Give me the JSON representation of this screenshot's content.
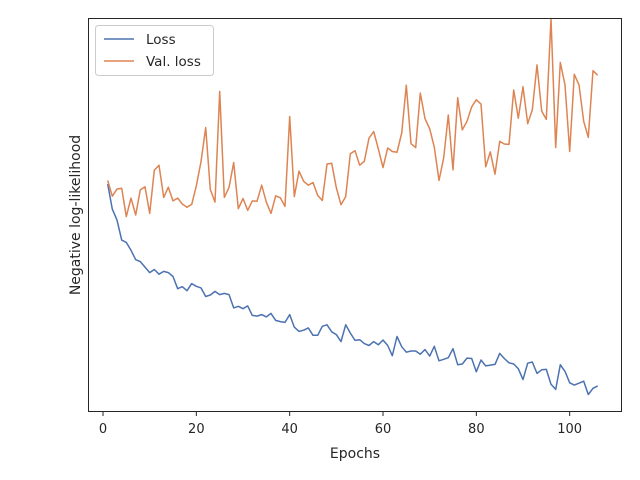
{
  "chart_data": {
    "type": "line",
    "xlabel": "Epochs",
    "ylabel": "Negative log-likelihood",
    "xlim": [
      -3,
      111
    ],
    "ylim": [
      0,
      1
    ],
    "xticks": [
      0,
      20,
      40,
      60,
      80,
      100
    ],
    "xtick_labels": [
      "0",
      "20",
      "40",
      "60",
      "80",
      "100"
    ],
    "y_tick_labels_shown": false,
    "grid": false,
    "legend": "top-left",
    "series": [
      {
        "name": "Loss",
        "color": "#4c72b0",
        "x": [
          1,
          2,
          3,
          4,
          5,
          6,
          7,
          8,
          9,
          10,
          11,
          12,
          13,
          14,
          15,
          16,
          17,
          18,
          19,
          20,
          21,
          22,
          23,
          24,
          25,
          26,
          27,
          28,
          29,
          30,
          31,
          32,
          33,
          34,
          35,
          36,
          37,
          38,
          39,
          40,
          41,
          42,
          43,
          44,
          45,
          46,
          47,
          48,
          49,
          50,
          51,
          52,
          53,
          54,
          55,
          56,
          57,
          58,
          59,
          60,
          61,
          62,
          63,
          64,
          65,
          66,
          67,
          68,
          69,
          70,
          71,
          72,
          73,
          74,
          75,
          76,
          77,
          78,
          79,
          80,
          81,
          82,
          83,
          84,
          85,
          86,
          87,
          88,
          89,
          90,
          91,
          92,
          93,
          94,
          95,
          96,
          97,
          98,
          99,
          100,
          101,
          102,
          103,
          104,
          105,
          106
        ],
        "values": [
          0.579,
          0.515,
          0.487,
          0.436,
          0.43,
          0.41,
          0.386,
          0.381,
          0.367,
          0.353,
          0.361,
          0.349,
          0.356,
          0.353,
          0.343,
          0.312,
          0.317,
          0.307,
          0.325,
          0.318,
          0.314,
          0.292,
          0.296,
          0.305,
          0.297,
          0.3,
          0.297,
          0.263,
          0.267,
          0.261,
          0.268,
          0.244,
          0.242,
          0.246,
          0.24,
          0.249,
          0.231,
          0.228,
          0.226,
          0.246,
          0.214,
          0.203,
          0.206,
          0.212,
          0.193,
          0.193,
          0.216,
          0.22,
          0.202,
          0.195,
          0.177,
          0.22,
          0.199,
          0.18,
          0.182,
          0.172,
          0.167,
          0.177,
          0.169,
          0.181,
          0.167,
          0.141,
          0.19,
          0.164,
          0.15,
          0.153,
          0.153,
          0.145,
          0.157,
          0.14,
          0.165,
          0.128,
          0.132,
          0.136,
          0.159,
          0.118,
          0.12,
          0.135,
          0.134,
          0.1,
          0.13,
          0.115,
          0.117,
          0.119,
          0.147,
          0.134,
          0.123,
          0.12,
          0.108,
          0.08,
          0.122,
          0.125,
          0.096,
          0.105,
          0.106,
          0.068,
          0.055,
          0.118,
          0.101,
          0.072,
          0.066,
          0.071,
          0.076,
          0.042,
          0.058,
          0.064
        ]
      },
      {
        "name": "Val. loss",
        "color": "#dd8452",
        "x": [
          1,
          2,
          3,
          4,
          5,
          6,
          7,
          8,
          9,
          10,
          11,
          12,
          13,
          14,
          15,
          16,
          17,
          18,
          19,
          20,
          21,
          22,
          23,
          24,
          25,
          26,
          27,
          28,
          29,
          30,
          31,
          32,
          33,
          34,
          35,
          36,
          37,
          38,
          39,
          40,
          41,
          42,
          43,
          44,
          45,
          46,
          47,
          48,
          49,
          50,
          51,
          52,
          53,
          54,
          55,
          56,
          57,
          58,
          59,
          60,
          61,
          62,
          63,
          64,
          65,
          66,
          67,
          68,
          69,
          70,
          71,
          72,
          73,
          74,
          75,
          76,
          77,
          78,
          79,
          80,
          81,
          82,
          83,
          84,
          85,
          86,
          87,
          88,
          89,
          90,
          91,
          92,
          93,
          94,
          95,
          96,
          97,
          98,
          99,
          100,
          101,
          102,
          103,
          104,
          105,
          106
        ],
        "values": [
          0.588,
          0.548,
          0.566,
          0.568,
          0.496,
          0.543,
          0.5,
          0.564,
          0.572,
          0.504,
          0.614,
          0.627,
          0.545,
          0.571,
          0.536,
          0.543,
          0.528,
          0.52,
          0.527,
          0.574,
          0.636,
          0.723,
          0.565,
          0.533,
          0.815,
          0.545,
          0.57,
          0.634,
          0.516,
          0.542,
          0.512,
          0.536,
          0.535,
          0.576,
          0.533,
          0.504,
          0.549,
          0.544,
          0.522,
          0.751,
          0.547,
          0.612,
          0.586,
          0.576,
          0.583,
          0.55,
          0.537,
          0.63,
          0.632,
          0.57,
          0.526,
          0.547,
          0.656,
          0.664,
          0.627,
          0.637,
          0.696,
          0.713,
          0.669,
          0.621,
          0.671,
          0.662,
          0.66,
          0.709,
          0.831,
          0.682,
          0.672,
          0.811,
          0.746,
          0.72,
          0.673,
          0.588,
          0.646,
          0.755,
          0.615,
          0.799,
          0.717,
          0.739,
          0.776,
          0.794,
          0.783,
          0.623,
          0.661,
          0.604,
          0.688,
          0.681,
          0.68,
          0.819,
          0.747,
          0.827,
          0.733,
          0.768,
          0.883,
          0.765,
          0.744,
          1.001,
          0.672,
          0.889,
          0.832,
          0.662,
          0.859,
          0.832,
          0.739,
          0.698,
          0.868,
          0.856
        ]
      }
    ]
  }
}
